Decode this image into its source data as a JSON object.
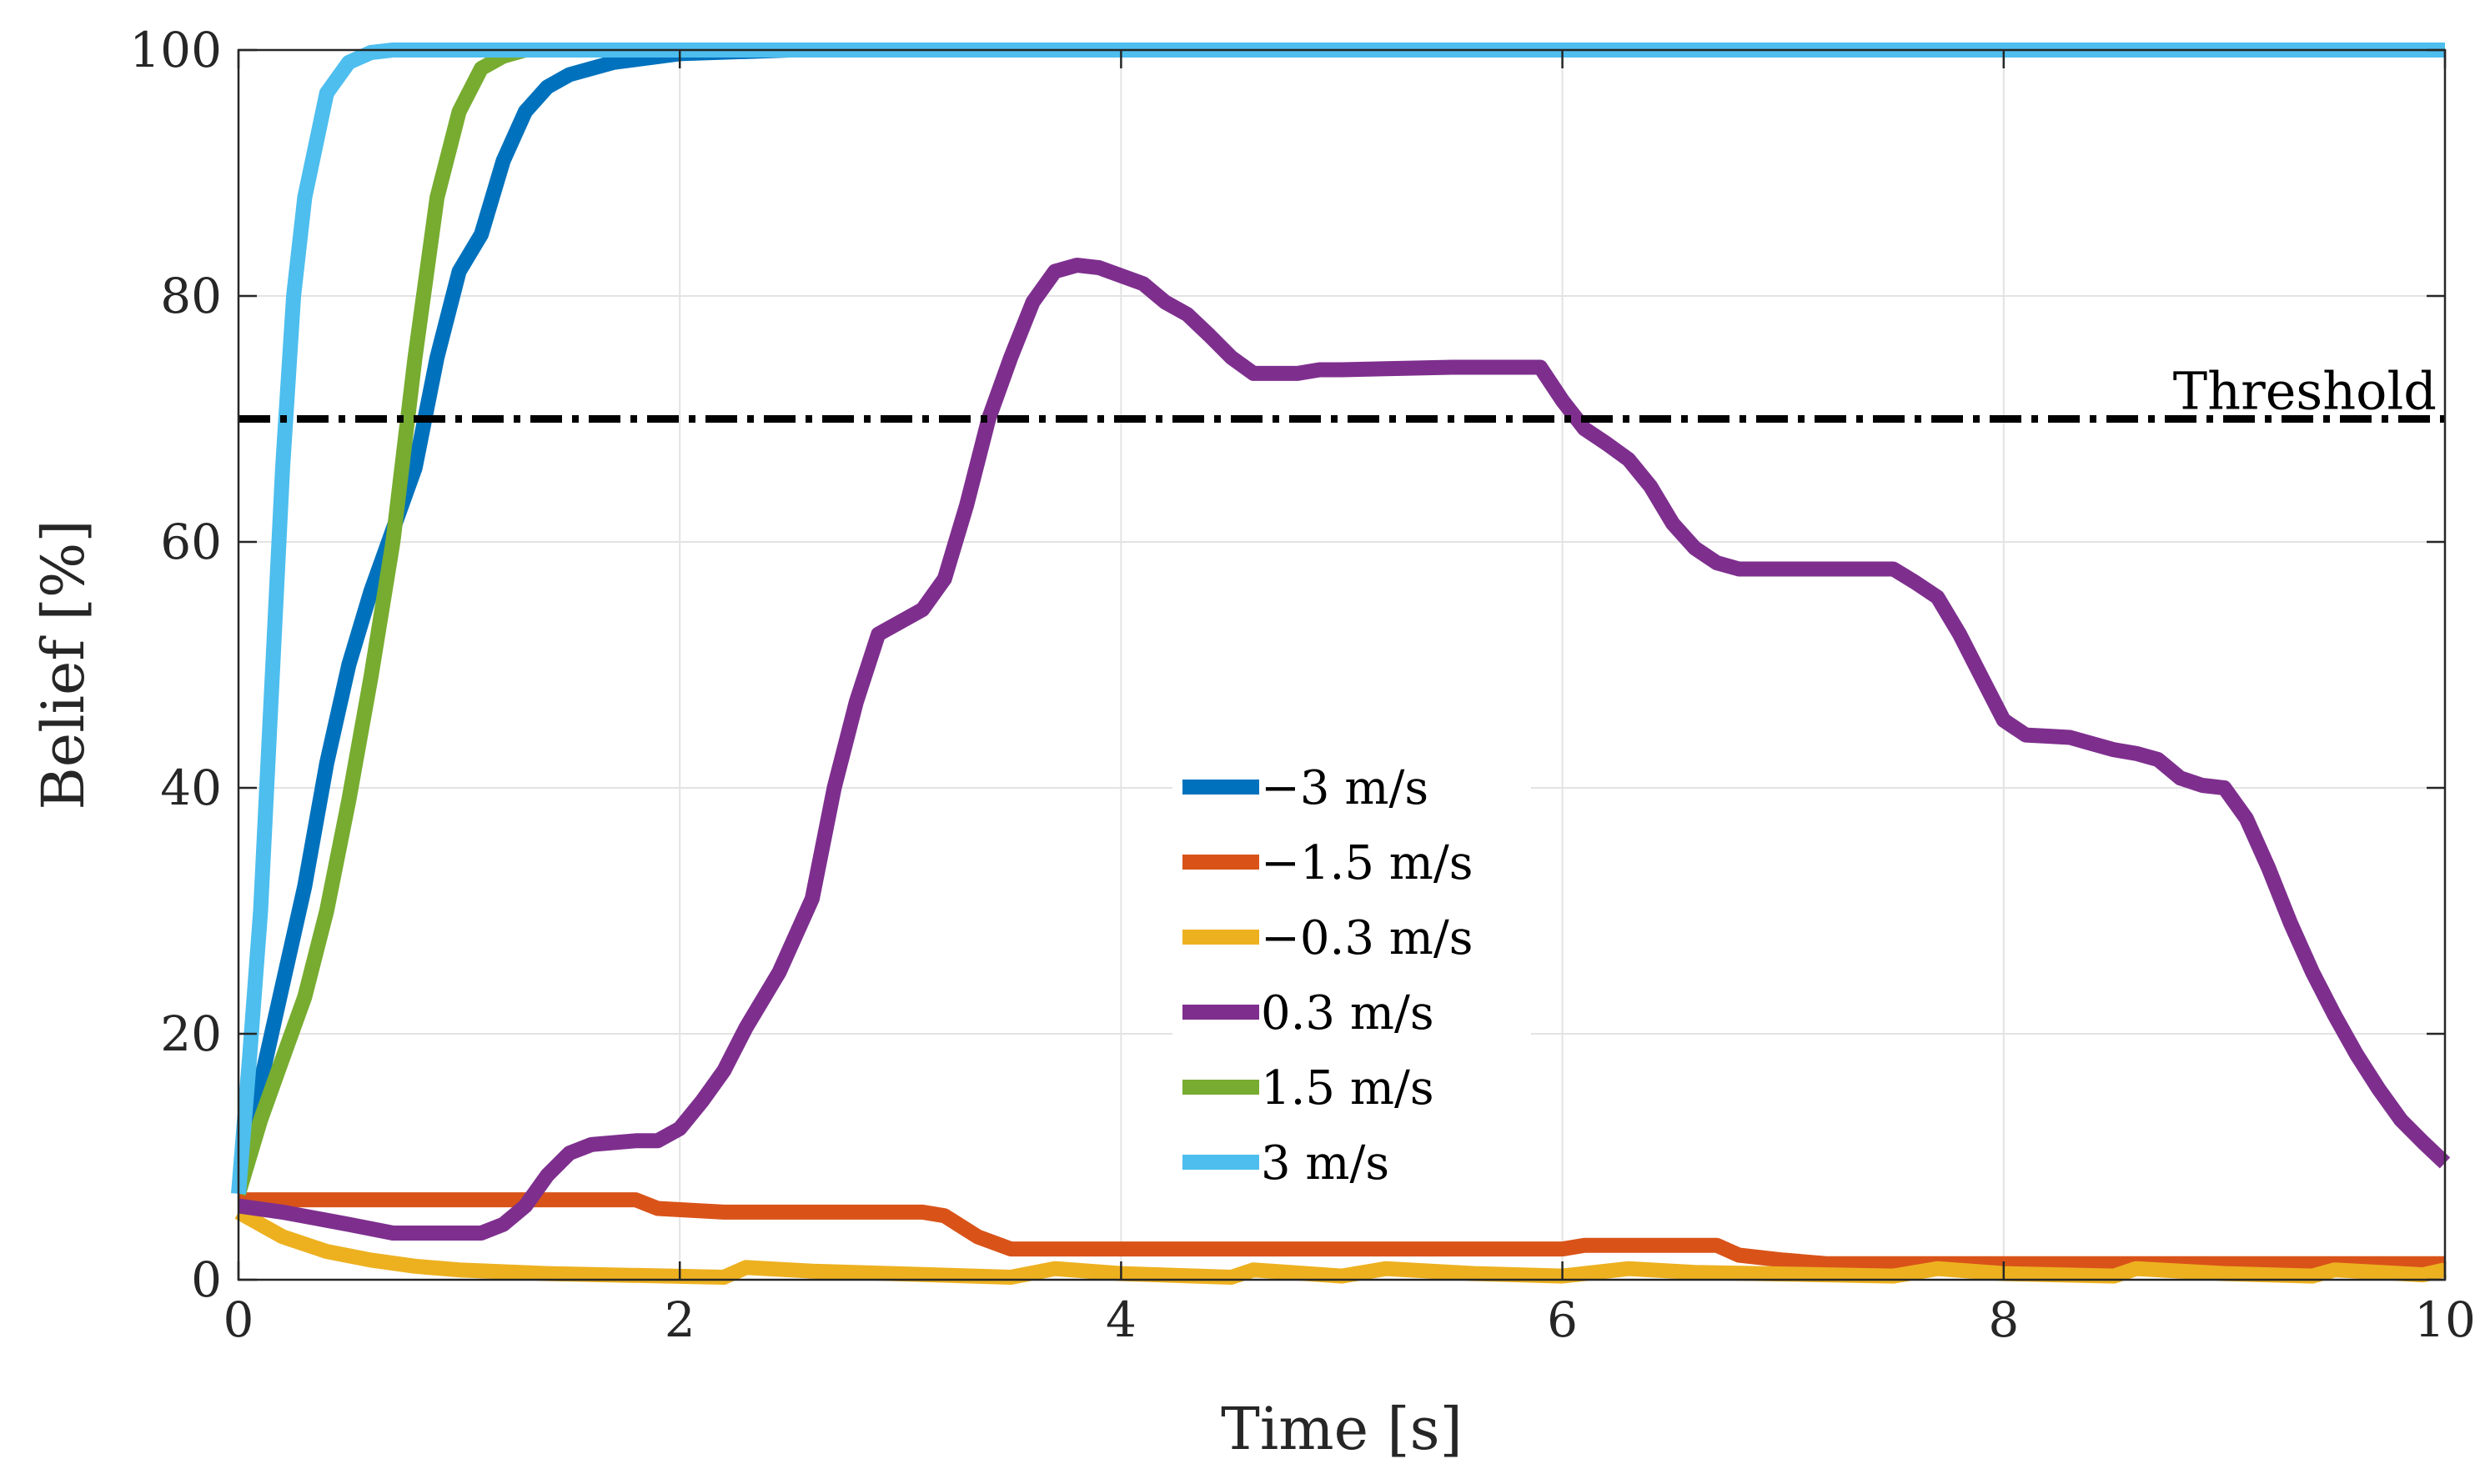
{
  "chart_data": {
    "type": "line",
    "title": "",
    "xlabel": "Time [s]",
    "ylabel": "Belief [%]",
    "xlim": [
      0,
      10
    ],
    "ylim": [
      0,
      100
    ],
    "xticks": [
      0,
      2,
      4,
      6,
      8,
      10
    ],
    "yticks": [
      0,
      20,
      40,
      60,
      80,
      100
    ],
    "xtick_labels": [
      "0",
      "2",
      "4",
      "6",
      "8",
      "10"
    ],
    "ytick_labels": [
      "0",
      "20",
      "40",
      "60",
      "80",
      "100"
    ],
    "grid": true,
    "legend_placement": "center",
    "threshold": {
      "label": "Threshold",
      "value": 70,
      "color": "#000000",
      "style": "dash-dot"
    },
    "series": [
      {
        "name": "−3 m/s",
        "color": "#0072BD",
        "points": [
          [
            0,
            7
          ],
          [
            0.1,
            16
          ],
          [
            0.2,
            24
          ],
          [
            0.3,
            32
          ],
          [
            0.4,
            42
          ],
          [
            0.5,
            50
          ],
          [
            0.6,
            56
          ],
          [
            0.7,
            61
          ],
          [
            0.8,
            66
          ],
          [
            0.9,
            75
          ],
          [
            1.0,
            82
          ],
          [
            1.1,
            85
          ],
          [
            1.2,
            91
          ],
          [
            1.3,
            95
          ],
          [
            1.4,
            97
          ],
          [
            1.5,
            98
          ],
          [
            1.7,
            99
          ],
          [
            2.0,
            99.7
          ],
          [
            2.5,
            100
          ],
          [
            10,
            100
          ]
        ]
      },
      {
        "name": "−1.5 m/s",
        "color": "#D95319",
        "points": [
          [
            0,
            6.5
          ],
          [
            1.8,
            6.5
          ],
          [
            1.9,
            5.8
          ],
          [
            2.2,
            5.5
          ],
          [
            3.1,
            5.5
          ],
          [
            3.2,
            5.2
          ],
          [
            3.35,
            3.5
          ],
          [
            3.5,
            2.5
          ],
          [
            6.0,
            2.5
          ],
          [
            6.1,
            2.8
          ],
          [
            6.7,
            2.8
          ],
          [
            6.8,
            2.0
          ],
          [
            7.0,
            1.6
          ],
          [
            7.2,
            1.3
          ],
          [
            10,
            1.3
          ]
        ]
      },
      {
        "name": "−0.3 m/s",
        "color": "#EDB120",
        "points": [
          [
            0,
            5.5
          ],
          [
            0.2,
            3.5
          ],
          [
            0.4,
            2.3
          ],
          [
            0.6,
            1.6
          ],
          [
            0.8,
            1.1
          ],
          [
            1.0,
            0.8
          ],
          [
            1.4,
            0.5
          ],
          [
            2.2,
            0.2
          ],
          [
            2.3,
            1.0
          ],
          [
            2.6,
            0.7
          ],
          [
            3.5,
            0.2
          ],
          [
            3.7,
            0.9
          ],
          [
            4.0,
            0.5
          ],
          [
            4.5,
            0.2
          ],
          [
            4.6,
            0.8
          ],
          [
            5.0,
            0.3
          ],
          [
            5.2,
            0.9
          ],
          [
            5.6,
            0.5
          ],
          [
            6.0,
            0.3
          ],
          [
            6.3,
            0.9
          ],
          [
            6.6,
            0.6
          ],
          [
            7.5,
            0.3
          ],
          [
            7.7,
            0.9
          ],
          [
            8.0,
            0.5
          ],
          [
            8.5,
            0.3
          ],
          [
            8.6,
            0.9
          ],
          [
            9.0,
            0.5
          ],
          [
            9.4,
            0.3
          ],
          [
            9.5,
            0.8
          ],
          [
            9.9,
            0.4
          ],
          [
            10,
            0.8
          ]
        ]
      },
      {
        "name": "0.3 m/s",
        "color": "#7E2F8E",
        "points": [
          [
            0,
            6
          ],
          [
            0.2,
            5.5
          ],
          [
            0.5,
            4.5
          ],
          [
            0.7,
            3.8
          ],
          [
            1.1,
            3.8
          ],
          [
            1.2,
            4.5
          ],
          [
            1.3,
            6
          ],
          [
            1.4,
            8.5
          ],
          [
            1.5,
            10.3
          ],
          [
            1.6,
            11
          ],
          [
            1.8,
            11.3
          ],
          [
            1.9,
            11.3
          ],
          [
            2.0,
            12.3
          ],
          [
            2.1,
            14.5
          ],
          [
            2.2,
            17
          ],
          [
            2.3,
            20.5
          ],
          [
            2.45,
            25
          ],
          [
            2.6,
            31
          ],
          [
            2.7,
            40
          ],
          [
            2.8,
            47
          ],
          [
            2.9,
            52.5
          ],
          [
            3.0,
            53.5
          ],
          [
            3.1,
            54.5
          ],
          [
            3.2,
            57
          ],
          [
            3.3,
            63
          ],
          [
            3.4,
            70
          ],
          [
            3.5,
            75
          ],
          [
            3.6,
            79.5
          ],
          [
            3.7,
            82
          ],
          [
            3.8,
            82.5
          ],
          [
            3.9,
            82.3
          ],
          [
            4.1,
            81
          ],
          [
            4.2,
            79.5
          ],
          [
            4.3,
            78.5
          ],
          [
            4.4,
            76.8
          ],
          [
            4.5,
            75
          ],
          [
            4.6,
            73.7
          ],
          [
            4.8,
            73.7
          ],
          [
            4.9,
            74
          ],
          [
            5.0,
            74
          ],
          [
            5.5,
            74.2
          ],
          [
            5.9,
            74.2
          ],
          [
            6.0,
            71.5
          ],
          [
            6.1,
            69.2
          ],
          [
            6.2,
            68
          ],
          [
            6.3,
            66.7
          ],
          [
            6.4,
            64.5
          ],
          [
            6.5,
            61.5
          ],
          [
            6.6,
            59.5
          ],
          [
            6.7,
            58.3
          ],
          [
            6.8,
            57.8
          ],
          [
            7.0,
            57.8
          ],
          [
            7.5,
            57.8
          ],
          [
            7.6,
            56.7
          ],
          [
            7.7,
            55.5
          ],
          [
            7.8,
            52.5
          ],
          [
            7.9,
            49
          ],
          [
            8.0,
            45.5
          ],
          [
            8.1,
            44.3
          ],
          [
            8.2,
            44.2
          ],
          [
            8.3,
            44.1
          ],
          [
            8.4,
            43.6
          ],
          [
            8.5,
            43.1
          ],
          [
            8.6,
            42.8
          ],
          [
            8.7,
            42.3
          ],
          [
            8.8,
            40.8
          ],
          [
            8.9,
            40.2
          ],
          [
            9.0,
            40
          ],
          [
            9.1,
            37.5
          ],
          [
            9.2,
            33.5
          ],
          [
            9.3,
            29
          ],
          [
            9.4,
            25
          ],
          [
            9.5,
            21.5
          ],
          [
            9.6,
            18.3
          ],
          [
            9.7,
            15.5
          ],
          [
            9.8,
            13
          ],
          [
            9.9,
            11.2
          ],
          [
            10,
            9.5
          ]
        ]
      },
      {
        "name": "1.5 m/s",
        "color": "#77AC30",
        "points": [
          [
            0,
            7
          ],
          [
            0.1,
            13
          ],
          [
            0.2,
            18
          ],
          [
            0.3,
            23
          ],
          [
            0.4,
            30
          ],
          [
            0.5,
            39
          ],
          [
            0.6,
            49
          ],
          [
            0.7,
            60
          ],
          [
            0.8,
            75
          ],
          [
            0.9,
            88
          ],
          [
            1.0,
            95
          ],
          [
            1.1,
            98.5
          ],
          [
            1.2,
            99.5
          ],
          [
            1.3,
            100
          ],
          [
            10,
            100
          ]
        ]
      },
      {
        "name": "3 m/s",
        "color": "#4DBEEE",
        "points": [
          [
            0,
            7
          ],
          [
            0.05,
            18
          ],
          [
            0.1,
            30
          ],
          [
            0.15,
            48
          ],
          [
            0.2,
            66
          ],
          [
            0.25,
            80
          ],
          [
            0.3,
            88
          ],
          [
            0.4,
            96.5
          ],
          [
            0.5,
            99
          ],
          [
            0.6,
            99.8
          ],
          [
            0.7,
            100
          ],
          [
            10,
            100
          ]
        ]
      }
    ]
  }
}
